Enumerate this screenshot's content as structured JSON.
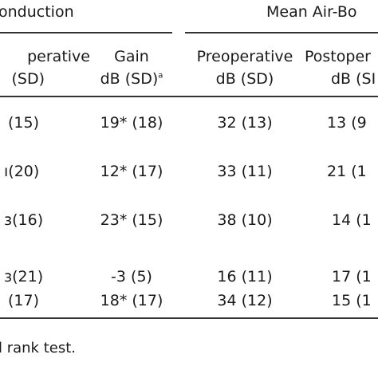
{
  "header": {
    "group_left": "onduction",
    "group_right": "Mean Air-Bo",
    "col1_line1": "perative",
    "col1_line2": "(SD)",
    "col2_line1": "Gain",
    "col2_line2": "dB (SD)",
    "col2_sup": "a",
    "col3_line1": "Preoperative",
    "col3_line2": "dB (SD)",
    "col4_line1": "Postoper",
    "col4_line2": "dB (SI"
  },
  "rows": [
    {
      "c1": "(15)",
      "c2": "19* (18)",
      "c3": "32 (13)",
      "c4": "13 (9"
    },
    {
      "c1": "(20)",
      "c2": "12* (17)",
      "c3": "33 (11)",
      "c4": "21 (1"
    },
    {
      "c1": "(16)",
      "c2": "23* (15)",
      "c3": "38 (10)",
      "c4": "14 (1"
    },
    {
      "c1": "(21)",
      "c2": "-3 (5)",
      "c3": "16 (11)",
      "c4": "17 (1"
    },
    {
      "c1": "(17)",
      "c2": "18* (17)",
      "c3": "34 (12)",
      "c4": "15 (1"
    }
  ],
  "footnote": "l rank test."
}
